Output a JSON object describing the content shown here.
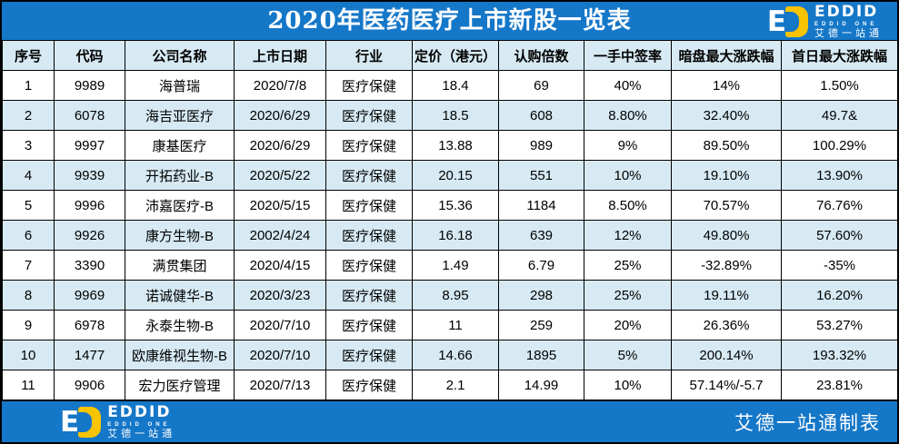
{
  "header": {
    "title": "2020年医药医疗上市新股一览表"
  },
  "brand": {
    "wordmark": "EDDID",
    "subtitle": "EDDID ONE",
    "chinese": "艾德一站通",
    "mark_letter": "E"
  },
  "footer": {
    "credit": "艾德一站通制表"
  },
  "colors": {
    "banner_blue": "#1577c8",
    "row_alt_blue": "#d7eaf3",
    "logo_yellow": "#f8c300",
    "border_black": "#000000",
    "text_white": "#ffffff"
  },
  "chart_data": {
    "type": "table",
    "title": "2020年医药医疗上市新股一览表",
    "columns": [
      "序号",
      "代码",
      "公司名称",
      "上市日期",
      "行业",
      "定价（港元）",
      "认购倍数",
      "一手中签率",
      "暗盘最大涨跌幅",
      "首日最大涨跌幅"
    ],
    "rows": [
      [
        "1",
        "9989",
        "海普瑞",
        "2020/7/8",
        "医疗保健",
        "18.4",
        "69",
        "40%",
        "14%",
        "1.50%"
      ],
      [
        "2",
        "6078",
        "海吉亚医疗",
        "2020/6/29",
        "医疗保健",
        "18.5",
        "608",
        "8.80%",
        "32.40%",
        "49.7&"
      ],
      [
        "3",
        "9997",
        "康基医疗",
        "2020/6/29",
        "医疗保健",
        "13.88",
        "989",
        "9%",
        "89.50%",
        "100.29%"
      ],
      [
        "4",
        "9939",
        "开拓药业-B",
        "2020/5/22",
        "医疗保健",
        "20.15",
        "551",
        "10%",
        "19.10%",
        "13.90%"
      ],
      [
        "5",
        "9996",
        "沛嘉医疗-B",
        "2020/5/15",
        "医疗保健",
        "15.36",
        "1184",
        "8.50%",
        "70.57%",
        "76.76%"
      ],
      [
        "6",
        "9926",
        "康方生物-B",
        "2002/4/24",
        "医疗保健",
        "16.18",
        "639",
        "12%",
        "49.80%",
        "57.60%"
      ],
      [
        "7",
        "3390",
        "满贯集团",
        "2020/4/15",
        "医疗保健",
        "1.49",
        "6.79",
        "25%",
        "-32.89%",
        "-35%"
      ],
      [
        "8",
        "9969",
        "诺诚健华-B",
        "2020/3/23",
        "医疗保健",
        "8.95",
        "298",
        "25%",
        "19.11%",
        "16.20%"
      ],
      [
        "9",
        "6978",
        "永泰生物-B",
        "2020/7/10",
        "医疗保健",
        "11",
        "259",
        "20%",
        "26.36%",
        "53.27%"
      ],
      [
        "10",
        "1477",
        "欧康维视生物-B",
        "2020/7/10",
        "医疗保健",
        "14.66",
        "1895",
        "5%",
        "200.14%",
        "193.32%"
      ],
      [
        "11",
        "9906",
        "宏力医疗管理",
        "2020/7/13",
        "医疗保健",
        "2.1",
        "14.99",
        "10%",
        "57.14%/-5.7",
        "23.81%"
      ]
    ]
  }
}
